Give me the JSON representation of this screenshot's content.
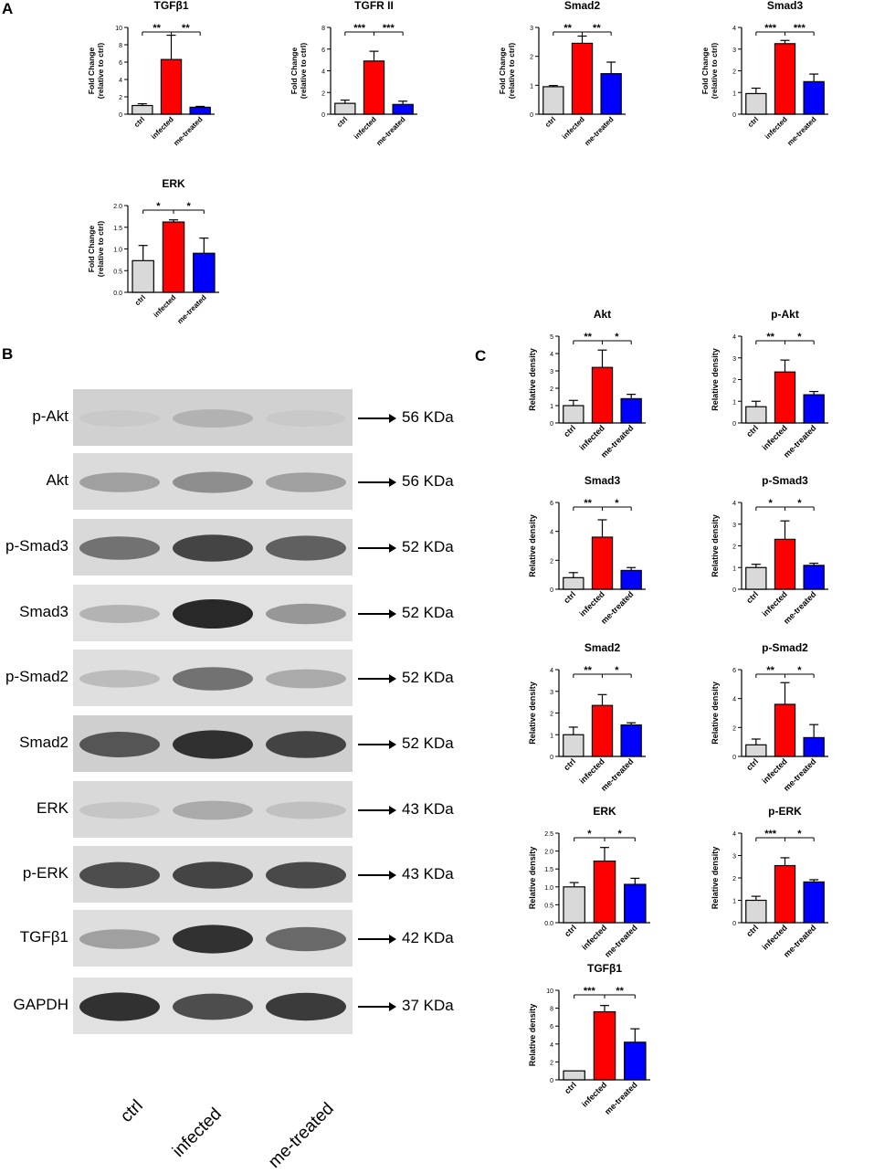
{
  "panels": {
    "a": "A",
    "b": "B",
    "c": "C"
  },
  "colors": {
    "ctrl": "#d9d9d9",
    "infected": "#ff0000",
    "me_treated": "#0000ff"
  },
  "chart_data": [
    {
      "type": "bar",
      "id": "a-tgfb1",
      "title": "TGFβ1",
      "ylabel_line1": "Fold Change",
      "ylabel_line2": "(relative to ctrl)",
      "categories": [
        "ctrl",
        "infected",
        "me-treated"
      ],
      "values": [
        1.0,
        6.3,
        0.8
      ],
      "errors": [
        0.2,
        2.8,
        0.1
      ],
      "ylim": [
        0,
        10
      ],
      "ticks": [
        0,
        2,
        4,
        6,
        8,
        10
      ],
      "tick_labels": [
        "0",
        "2",
        "4",
        "6",
        "8",
        "10"
      ],
      "sig": [
        {
          "from": 0,
          "to": 1,
          "label": "**"
        },
        {
          "from": 1,
          "to": 2,
          "label": "**"
        }
      ]
    },
    {
      "type": "bar",
      "id": "a-tgfr2",
      "title": "TGFR II",
      "ylabel_line1": "Fold Change",
      "ylabel_line2": "(relative to ctrl)",
      "categories": [
        "ctrl",
        "infected",
        "me-treated"
      ],
      "values": [
        1.0,
        4.9,
        0.9
      ],
      "errors": [
        0.3,
        0.9,
        0.3
      ],
      "ylim": [
        0,
        8
      ],
      "ticks": [
        0,
        2,
        4,
        6,
        8
      ],
      "tick_labels": [
        "0",
        "2",
        "4",
        "6",
        "8"
      ],
      "sig": [
        {
          "from": 0,
          "to": 1,
          "label": "***"
        },
        {
          "from": 1,
          "to": 2,
          "label": "***"
        }
      ]
    },
    {
      "type": "bar",
      "id": "a-smad2",
      "title": "Smad2",
      "ylabel_line1": "Fold Change",
      "ylabel_line2": "(relative to ctrl)",
      "categories": [
        "ctrl",
        "infected",
        "me-treated"
      ],
      "values": [
        0.95,
        2.45,
        1.4
      ],
      "errors": [
        0.04,
        0.25,
        0.4
      ],
      "ylim": [
        0,
        3
      ],
      "ticks": [
        0,
        1,
        2,
        3
      ],
      "tick_labels": [
        "0",
        "1",
        "2",
        "3"
      ],
      "sig": [
        {
          "from": 0,
          "to": 1,
          "label": "**"
        },
        {
          "from": 1,
          "to": 2,
          "label": "**"
        }
      ]
    },
    {
      "type": "bar",
      "id": "a-smad3",
      "title": "Smad3",
      "ylabel_line1": "Fold Change",
      "ylabel_line2": "(relative to ctrl)",
      "categories": [
        "ctrl",
        "infected",
        "me-treated"
      ],
      "values": [
        0.95,
        3.25,
        1.5
      ],
      "errors": [
        0.25,
        0.15,
        0.35
      ],
      "ylim": [
        0,
        4
      ],
      "ticks": [
        0,
        1,
        2,
        3,
        4
      ],
      "tick_labels": [
        "0",
        "1",
        "2",
        "3",
        "4"
      ],
      "sig": [
        {
          "from": 0,
          "to": 1,
          "label": "***"
        },
        {
          "from": 1,
          "to": 2,
          "label": "***"
        }
      ]
    },
    {
      "type": "bar",
      "id": "a-erk",
      "title": "ERK",
      "ylabel_line1": "Fold Change",
      "ylabel_line2": "(relative to ctrl)",
      "categories": [
        "ctrl",
        "infected",
        "me-treated"
      ],
      "values": [
        0.73,
        1.62,
        0.9
      ],
      "errors": [
        0.35,
        0.05,
        0.35
      ],
      "ylim": [
        0,
        2.0
      ],
      "ticks": [
        0,
        0.5,
        1.0,
        1.5,
        2.0
      ],
      "tick_labels": [
        "0.0",
        "0.5",
        "1.0",
        "1.5",
        "2.0"
      ],
      "sig": [
        {
          "from": 0,
          "to": 1,
          "label": "*"
        },
        {
          "from": 1,
          "to": 2,
          "label": "*"
        }
      ]
    },
    {
      "type": "bar",
      "id": "c-akt",
      "title": "Akt",
      "ylabel_line1": "Relative density",
      "ylabel_line2": "",
      "categories": [
        "ctrl",
        "infected",
        "me-treated"
      ],
      "values": [
        1.0,
        3.2,
        1.4
      ],
      "errors": [
        0.3,
        1.0,
        0.25
      ],
      "ylim": [
        0,
        5
      ],
      "ticks": [
        0,
        1,
        2,
        3,
        4,
        5
      ],
      "tick_labels": [
        "0",
        "1",
        "2",
        "3",
        "4",
        "5"
      ],
      "sig": [
        {
          "from": 0,
          "to": 1,
          "label": "**"
        },
        {
          "from": 1,
          "to": 2,
          "label": "*"
        }
      ]
    },
    {
      "type": "bar",
      "id": "c-pakt",
      "title": "p-Akt",
      "ylabel_line1": "Relative density",
      "ylabel_line2": "",
      "categories": [
        "ctrl",
        "infected",
        "me-treated"
      ],
      "values": [
        0.75,
        2.35,
        1.3
      ],
      "errors": [
        0.25,
        0.55,
        0.15
      ],
      "ylim": [
        0,
        4
      ],
      "ticks": [
        0,
        1,
        2,
        3,
        4
      ],
      "tick_labels": [
        "0",
        "1",
        "2",
        "3",
        "4"
      ],
      "sig": [
        {
          "from": 0,
          "to": 1,
          "label": "**"
        },
        {
          "from": 1,
          "to": 2,
          "label": "*"
        }
      ]
    },
    {
      "type": "bar",
      "id": "c-smad3",
      "title": "Smad3",
      "ylabel_line1": "Relative density",
      "ylabel_line2": "",
      "categories": [
        "ctrl",
        "infected",
        "me-treated"
      ],
      "values": [
        0.8,
        3.6,
        1.3
      ],
      "errors": [
        0.35,
        1.2,
        0.2
      ],
      "ylim": [
        0,
        6
      ],
      "ticks": [
        0,
        2,
        4,
        6
      ],
      "tick_labels": [
        "0",
        "2",
        "4",
        "6"
      ],
      "sig": [
        {
          "from": 0,
          "to": 1,
          "label": "**"
        },
        {
          "from": 1,
          "to": 2,
          "label": "*"
        }
      ]
    },
    {
      "type": "bar",
      "id": "c-psmad3",
      "title": "p-Smad3",
      "ylabel_line1": "Relative density",
      "ylabel_line2": "",
      "categories": [
        "ctrl",
        "infected",
        "me-treated"
      ],
      "values": [
        1.0,
        2.3,
        1.1
      ],
      "errors": [
        0.15,
        0.85,
        0.1
      ],
      "ylim": [
        0,
        4
      ],
      "ticks": [
        0,
        1,
        2,
        3,
        4
      ],
      "tick_labels": [
        "0",
        "1",
        "2",
        "3",
        "4"
      ],
      "sig": [
        {
          "from": 0,
          "to": 1,
          "label": "*"
        },
        {
          "from": 1,
          "to": 2,
          "label": "*"
        }
      ]
    },
    {
      "type": "bar",
      "id": "c-smad2",
      "title": "Smad2",
      "ylabel_line1": "Relative density",
      "ylabel_line2": "",
      "categories": [
        "ctrl",
        "infected",
        "me-treated"
      ],
      "values": [
        1.0,
        2.35,
        1.45
      ],
      "errors": [
        0.35,
        0.5,
        0.1
      ],
      "ylim": [
        0,
        4
      ],
      "ticks": [
        0,
        1,
        2,
        3,
        4
      ],
      "tick_labels": [
        "0",
        "1",
        "2",
        "3",
        "4"
      ],
      "sig": [
        {
          "from": 0,
          "to": 1,
          "label": "**"
        },
        {
          "from": 1,
          "to": 2,
          "label": "*"
        }
      ]
    },
    {
      "type": "bar",
      "id": "c-psmad2",
      "title": "p-Smad2",
      "ylabel_line1": "Relative density",
      "ylabel_line2": "",
      "categories": [
        "ctrl",
        "infected",
        "me-treated"
      ],
      "values": [
        0.8,
        3.6,
        1.3
      ],
      "errors": [
        0.4,
        1.5,
        0.9
      ],
      "ylim": [
        0,
        6
      ],
      "ticks": [
        0,
        2,
        4,
        6
      ],
      "tick_labels": [
        "0",
        "2",
        "4",
        "6"
      ],
      "sig": [
        {
          "from": 0,
          "to": 1,
          "label": "**"
        },
        {
          "from": 1,
          "to": 2,
          "label": "*"
        }
      ]
    },
    {
      "type": "bar",
      "id": "c-erk",
      "title": "ERK",
      "ylabel_line1": "Relative density",
      "ylabel_line2": "",
      "categories": [
        "ctrl",
        "infected",
        "me-treated"
      ],
      "values": [
        1.0,
        1.72,
        1.07
      ],
      "errors": [
        0.12,
        0.38,
        0.17
      ],
      "ylim": [
        0,
        2.5
      ],
      "ticks": [
        0,
        0.5,
        1.0,
        1.5,
        2.0,
        2.5
      ],
      "tick_labels": [
        "0.0",
        "0.5",
        "1.0",
        "1.5",
        "2.0",
        "2.5"
      ],
      "sig": [
        {
          "from": 0,
          "to": 1,
          "label": "*"
        },
        {
          "from": 1,
          "to": 2,
          "label": "*"
        }
      ]
    },
    {
      "type": "bar",
      "id": "c-perk",
      "title": "p-ERK",
      "ylabel_line1": "Relative density",
      "ylabel_line2": "",
      "categories": [
        "ctrl",
        "infected",
        "me-treated"
      ],
      "values": [
        1.0,
        2.55,
        1.82
      ],
      "errors": [
        0.18,
        0.35,
        0.1
      ],
      "ylim": [
        0,
        4
      ],
      "ticks": [
        0,
        1,
        2,
        3,
        4
      ],
      "tick_labels": [
        "0",
        "1",
        "2",
        "3",
        "4"
      ],
      "sig": [
        {
          "from": 0,
          "to": 1,
          "label": "***"
        },
        {
          "from": 1,
          "to": 2,
          "label": "*"
        }
      ]
    },
    {
      "type": "bar",
      "id": "c-tgfb1",
      "title": "TGFβ1",
      "ylabel_line1": "Relative density",
      "ylabel_line2": "",
      "categories": [
        "ctrl",
        "infected",
        "me-treated"
      ],
      "values": [
        1.0,
        7.6,
        4.2
      ],
      "errors": [
        0.0,
        0.7,
        1.5
      ],
      "ylim": [
        0,
        10
      ],
      "ticks": [
        0,
        2,
        4,
        6,
        8,
        10
      ],
      "tick_labels": [
        "0",
        "2",
        "4",
        "6",
        "8",
        "10"
      ],
      "sig": [
        {
          "from": 0,
          "to": 1,
          "label": "***"
        },
        {
          "from": 1,
          "to": 2,
          "label": "**"
        }
      ]
    }
  ],
  "blots": [
    {
      "protein": "p-Akt",
      "size": "56 KDa",
      "intensity": [
        0.12,
        0.25,
        0.12
      ],
      "bg": 0.32
    },
    {
      "protein": "Akt",
      "size": "56 KDa",
      "intensity": [
        0.35,
        0.45,
        0.35
      ],
      "bg": 0.2
    },
    {
      "protein": "p-Smad3",
      "size": "52 KDa",
      "intensity": [
        0.6,
        0.85,
        0.7
      ],
      "bg": 0.22
    },
    {
      "protein": "Smad3",
      "size": "52 KDa",
      "intensity": [
        0.25,
        1.0,
        0.4
      ],
      "bg": 0.12
    },
    {
      "protein": "p-Smad2",
      "size": "52 KDa",
      "intensity": [
        0.2,
        0.6,
        0.3
      ],
      "bg": 0.15
    },
    {
      "protein": "Smad2",
      "size": "52 KDa",
      "intensity": [
        0.75,
        0.95,
        0.85
      ],
      "bg": 0.35
    },
    {
      "protein": "ERK",
      "size": "43 KDa",
      "intensity": [
        0.15,
        0.3,
        0.18
      ],
      "bg": 0.22
    },
    {
      "protein": "p-ERK",
      "size": "43 KDa",
      "intensity": [
        0.8,
        0.85,
        0.82
      ],
      "bg": 0.2
    },
    {
      "protein": "TGFβ1",
      "size": "42 KDa",
      "intensity": [
        0.35,
        0.95,
        0.65
      ],
      "bg": 0.16
    },
    {
      "protein": "GAPDH",
      "size": "37 KDa",
      "intensity": [
        0.95,
        0.8,
        0.9
      ],
      "bg": 0.12
    }
  ],
  "lanes": [
    "ctrl",
    "infected",
    "me-treated"
  ]
}
